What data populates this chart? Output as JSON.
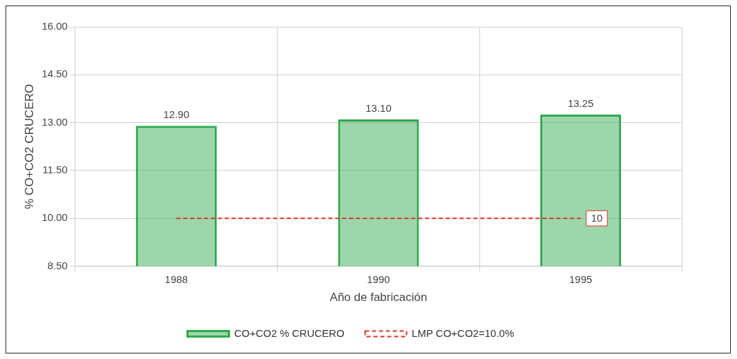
{
  "chart_data": {
    "type": "bar",
    "xlabel": "Año de fabricación",
    "ylabel": "% CO+CO2 CRUCERO",
    "categories": [
      "1988",
      "1990",
      "1995"
    ],
    "series": [
      {
        "name": "CO+CO2 % CRUCERO",
        "color": "#2ea84a",
        "values": [
          12.9,
          13.1,
          13.25
        ],
        "value_labels": [
          "12.90",
          "13.10",
          "13.25"
        ]
      },
      {
        "name": "LMP CO+CO2=10.0%",
        "type": "line",
        "color": "#e0302a",
        "values": [
          10,
          10,
          10
        ],
        "line_style": "dashed",
        "marker": "none",
        "value_labels": [
          null,
          null,
          "10"
        ]
      }
    ],
    "ylim": [
      8.5,
      16
    ],
    "yticks": [
      {
        "value": 8.5,
        "label": "8.50"
      },
      {
        "value": 10,
        "label": "10.00"
      },
      {
        "value": 11.5,
        "label": "11.50"
      },
      {
        "value": 13,
        "label": "13.00"
      },
      {
        "value": 14.5,
        "label": "14.50"
      },
      {
        "value": 16,
        "label": "16.00"
      }
    ],
    "grid": true,
    "legend": "bottom"
  }
}
